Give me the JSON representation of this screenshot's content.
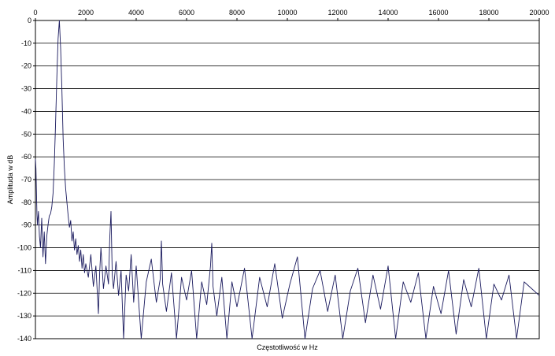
{
  "chart_data": {
    "type": "line",
    "title": "",
    "xlabel": "Częstotliwość w Hz",
    "ylabel": "Amplituda w dB",
    "xlim": [
      0,
      20000
    ],
    "ylim": [
      -140,
      0
    ],
    "x_ticks": [
      0,
      2000,
      4000,
      6000,
      8000,
      10000,
      12000,
      14000,
      16000,
      18000,
      20000
    ],
    "y_ticks": [
      0,
      -10,
      -20,
      -30,
      -40,
      -50,
      -60,
      -70,
      -80,
      -90,
      -100,
      -110,
      -120,
      -130,
      -140
    ],
    "x_axis_position": "top",
    "grid": "horizontal",
    "legend": "none",
    "series": [
      {
        "color": "#1a1a5e",
        "x": [
          0,
          20,
          40,
          60,
          80,
          120,
          160,
          200,
          250,
          300,
          350,
          400,
          450,
          500,
          550,
          600,
          650,
          700,
          750,
          800,
          850,
          900,
          950,
          1000,
          1050,
          1100,
          1150,
          1200,
          1250,
          1300,
          1350,
          1400,
          1450,
          1500,
          1550,
          1600,
          1650,
          1700,
          1750,
          1800,
          1850,
          1900,
          1950,
          2000,
          2100,
          2200,
          2300,
          2400,
          2500,
          2550,
          2600,
          2700,
          2800,
          2900,
          2950,
          3000,
          3050,
          3100,
          3200,
          3300,
          3400,
          3500,
          3600,
          3700,
          3800,
          3900,
          4000,
          4200,
          4400,
          4600,
          4800,
          4950,
          5000,
          5050,
          5200,
          5400,
          5600,
          5800,
          6000,
          6200,
          6400,
          6600,
          6800,
          6950,
          7000,
          7050,
          7200,
          7400,
          7600,
          7800,
          8000,
          8300,
          8600,
          8900,
          9200,
          9500,
          9800,
          10100,
          10400,
          10700,
          11000,
          11300,
          11600,
          11900,
          12200,
          12500,
          12800,
          13100,
          13400,
          13700,
          14000,
          14300,
          14600,
          14900,
          15200,
          15500,
          15800,
          16100,
          16400,
          16700,
          17000,
          17300,
          17600,
          17900,
          18200,
          18500,
          18800,
          19100,
          19400,
          19700,
          20000
        ],
        "y": [
          -61,
          -65,
          -75,
          -85,
          -90,
          -84,
          -95,
          -100,
          -87,
          -104,
          -93,
          -107,
          -95,
          -90,
          -86,
          -85,
          -82,
          -76,
          -63,
          -45,
          -25,
          -8,
          0,
          -12,
          -30,
          -52,
          -65,
          -74,
          -80,
          -86,
          -91,
          -88,
          -97,
          -93,
          -101,
          -96,
          -103,
          -99,
          -106,
          -101,
          -109,
          -103,
          -111,
          -107,
          -113,
          -103,
          -117,
          -108,
          -129,
          -111,
          -100,
          -118,
          -108,
          -116,
          -96,
          -84,
          -112,
          -118,
          -106,
          -121,
          -110,
          -140,
          -112,
          -119,
          -103,
          -124,
          -108,
          -140,
          -115,
          -105,
          -124,
          -114,
          -97,
          -116,
          -128,
          -111,
          -140,
          -113,
          -123,
          -110,
          -140,
          -115,
          -125,
          -108,
          -98,
          -117,
          -130,
          -113,
          -140,
          -115,
          -126,
          -109,
          -140,
          -113,
          -126,
          -107,
          -131,
          -116,
          -104,
          -140,
          -118,
          -110,
          -128,
          -112,
          -140,
          -119,
          -109,
          -133,
          -112,
          -127,
          -108,
          -140,
          -115,
          -124,
          -111,
          -140,
          -117,
          -129,
          -110,
          -138,
          -114,
          -126,
          -109,
          -140,
          -116,
          -123,
          -112,
          -140,
          -115,
          -118,
          -121
        ]
      }
    ]
  }
}
